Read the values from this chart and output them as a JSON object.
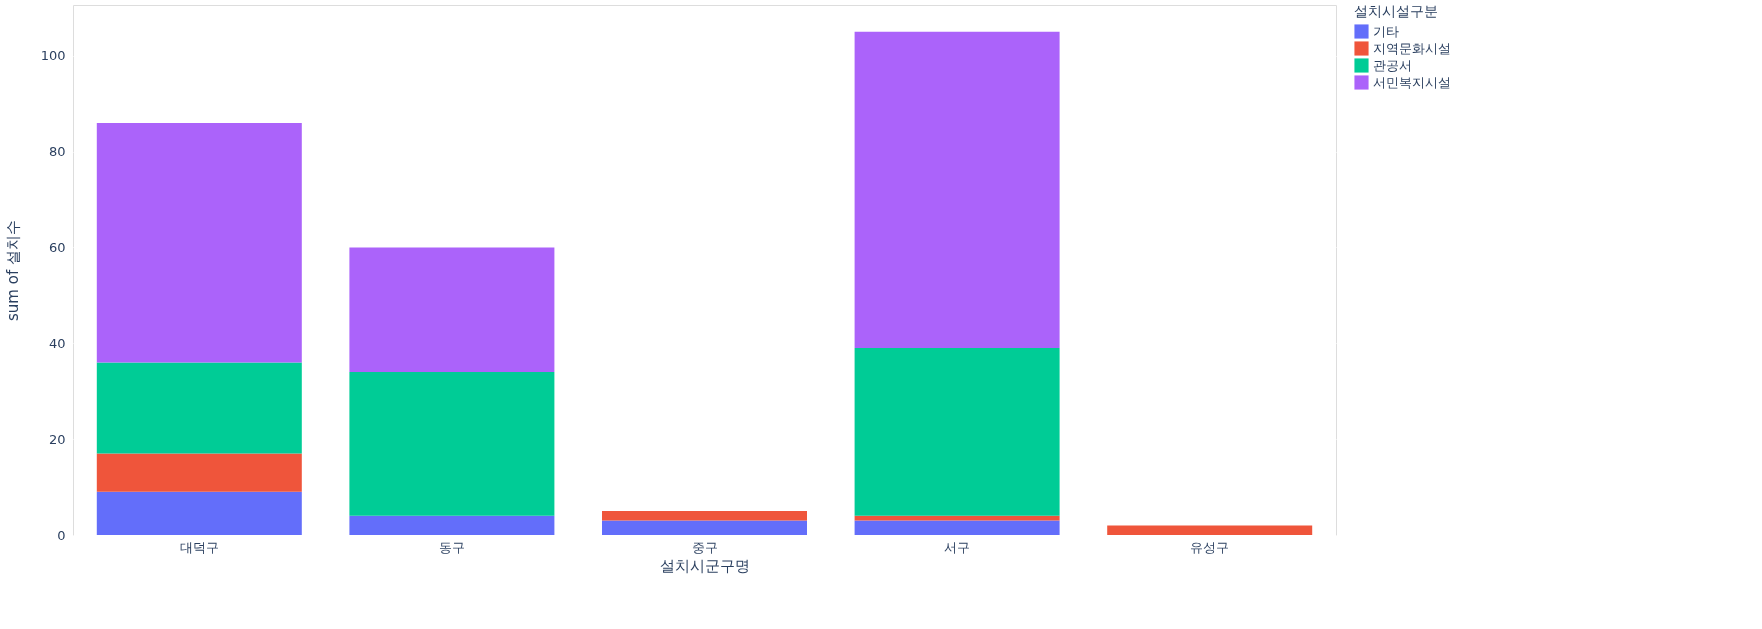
{
  "chart_data": {
    "type": "bar",
    "stacked": true,
    "xlabel": "설치시군구명",
    "ylabel": "sum of 설치수",
    "legend_title": "설치시설구분",
    "categories": [
      "대덕구",
      "동구",
      "중구",
      "서구",
      "유성구"
    ],
    "series": [
      {
        "name": "기타",
        "color": "#636efa",
        "values": [
          9,
          4,
          3,
          3,
          null
        ]
      },
      {
        "name": "지역문화시설",
        "color": "#ef553b",
        "values": [
          8,
          null,
          2,
          1,
          2
        ]
      },
      {
        "name": "관공서",
        "color": "#00cc96",
        "values": [
          19,
          30,
          null,
          35,
          null
        ]
      },
      {
        "name": "서민복지시설",
        "color": "#ab63fa",
        "values": [
          50,
          26,
          null,
          66,
          null
        ]
      }
    ],
    "ylim": [
      0,
      110.6
    ],
    "yticks": [
      0,
      20,
      40,
      60,
      80,
      100
    ],
    "grid": "y",
    "legend": "top right"
  }
}
